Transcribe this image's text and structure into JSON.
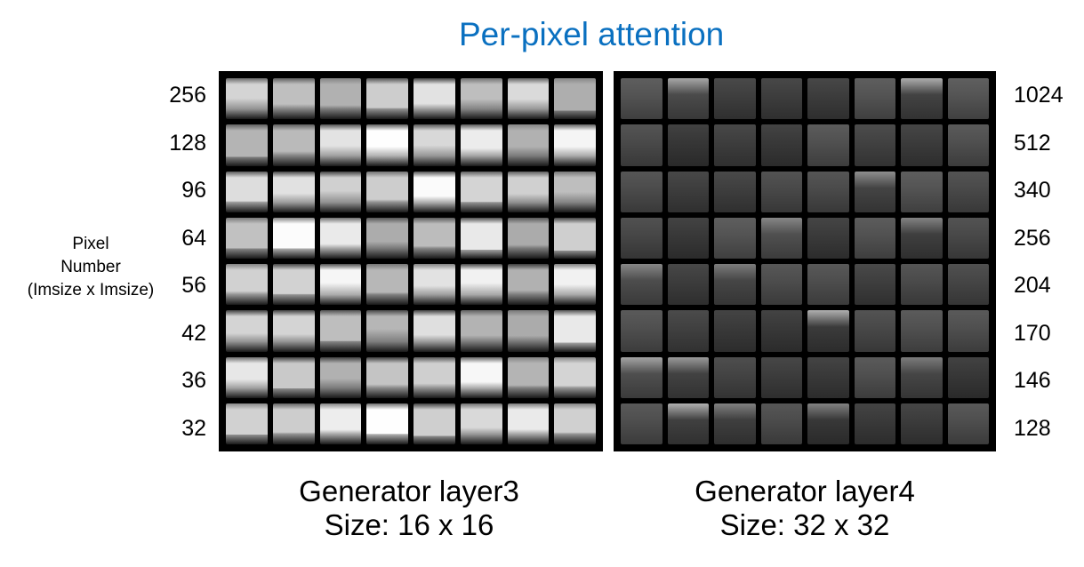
{
  "title": "Per-pixel attention",
  "axis_label": [
    "Pixel",
    "Number",
    "(Imsize x Imsize)"
  ],
  "left_panel": {
    "row_labels": [
      "256",
      "128",
      "96",
      "64",
      "56",
      "42",
      "36",
      "32"
    ],
    "caption": [
      "Generator layer3",
      "Size: 16 x 16"
    ],
    "tone": "bright"
  },
  "right_panel": {
    "row_labels": [
      "1024",
      "512",
      "340",
      "256",
      "204",
      "170",
      "146",
      "128"
    ],
    "caption": [
      "Generator layer4",
      "Size: 32 x 32"
    ],
    "tone": "dark"
  }
}
